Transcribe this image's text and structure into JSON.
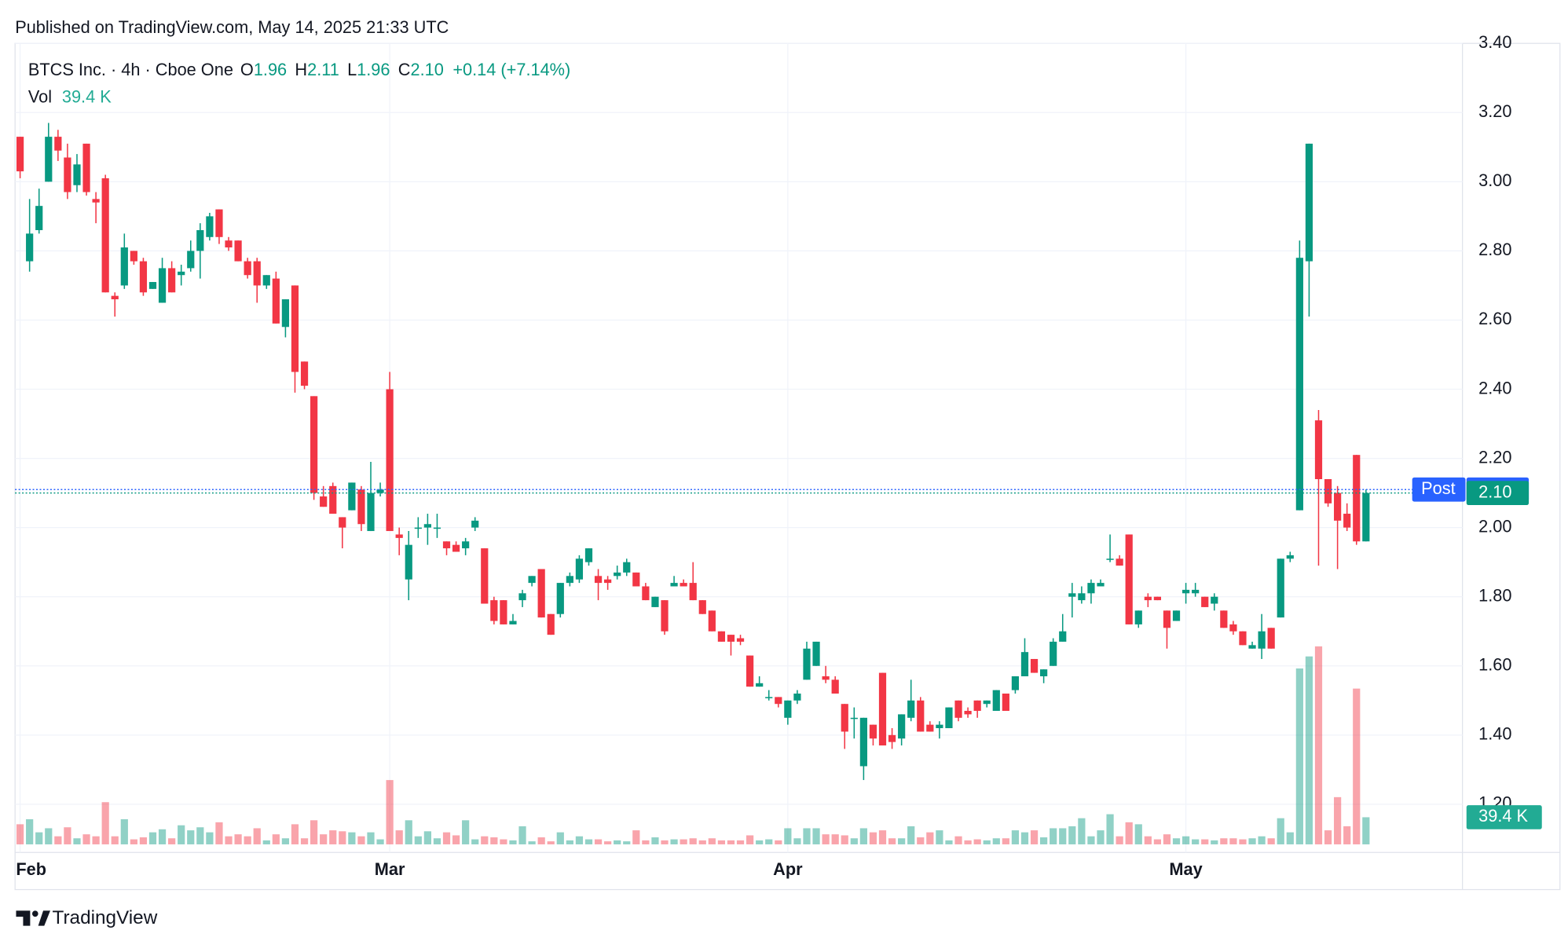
{
  "published": "Published on TradingView.com, May 14, 2025 21:33 UTC",
  "brand": "TradingView",
  "chart_data": {
    "type": "candlestick",
    "title": "BTCS Inc. · 4h · Cboe One",
    "up_color": "#089981",
    "down_color": "#f23645",
    "grid": true,
    "legend": {
      "ohlc_labels": [
        "O",
        "H",
        "L",
        "C"
      ],
      "close_label": "2.10",
      "change": "+0.14 (+7.14%)"
    },
    "post_market": {
      "label": "Post",
      "value": 2.11,
      "color": "#2962ff"
    },
    "ylim": [
      1.084,
      3.4
    ],
    "yticks": [
      {
        "value": 1.2,
        "label": "1.20"
      },
      {
        "value": 1.4,
        "label": "1.40"
      },
      {
        "value": 1.6,
        "label": "1.60"
      },
      {
        "value": 1.8,
        "label": "1.80"
      },
      {
        "value": 2.0,
        "label": "2.00"
      },
      {
        "value": 2.2,
        "label": "2.20"
      },
      {
        "value": 2.4,
        "label": "2.40"
      },
      {
        "value": 2.6,
        "label": "2.60"
      },
      {
        "value": 2.8,
        "label": "2.80"
      },
      {
        "value": 3.0,
        "label": "3.00"
      },
      {
        "value": 3.2,
        "label": "3.20"
      },
      {
        "value": 3.4,
        "label": "3.40"
      }
    ],
    "categories": [
      "Feb",
      null,
      null,
      null,
      null,
      null,
      null,
      null,
      null,
      null,
      null,
      null,
      null,
      null,
      null,
      null,
      null,
      null,
      null,
      null,
      null,
      null,
      null,
      null,
      null,
      null,
      null,
      null,
      null,
      null,
      null,
      null,
      null,
      null,
      null,
      null,
      null,
      null,
      null,
      "Mar",
      null,
      null,
      null,
      null,
      null,
      null,
      null,
      null,
      null,
      null,
      null,
      null,
      null,
      null,
      null,
      null,
      null,
      null,
      null,
      null,
      null,
      null,
      null,
      null,
      null,
      null,
      null,
      null,
      null,
      null,
      null,
      null,
      null,
      null,
      null,
      null,
      null,
      null,
      null,
      null,
      null,
      "Apr",
      null,
      null,
      null,
      null,
      null,
      null,
      null,
      null,
      null,
      null,
      null,
      null,
      null,
      null,
      null,
      null,
      null,
      null,
      null,
      null,
      null,
      null,
      null,
      null,
      null,
      null,
      null,
      null,
      null,
      null,
      null,
      null,
      null,
      null,
      null,
      null,
      null,
      null,
      null,
      null,
      null,
      "May",
      null,
      null,
      null,
      null,
      null,
      null,
      null,
      null,
      null,
      null,
      null,
      null,
      null,
      null,
      null,
      null,
      null,
      null,
      null
    ],
    "open": [
      3.13,
      2.77,
      2.86,
      3.0,
      3.13,
      3.07,
      2.99,
      3.11,
      2.95,
      3.01,
      2.67,
      2.7,
      2.8,
      2.77,
      2.69,
      2.65,
      2.75,
      2.73,
      2.75,
      2.8,
      2.84,
      2.92,
      2.83,
      2.83,
      2.77,
      2.77,
      2.7,
      2.72,
      2.58,
      2.7,
      2.48,
      2.38,
      2.09,
      2.12,
      2.03,
      2.05,
      2.11,
      1.99,
      2.1,
      2.4,
      1.98,
      1.85,
      2.0,
      2.0,
      2.0,
      1.96,
      1.95,
      1.94,
      2.0,
      1.94,
      1.79,
      1.79,
      1.72,
      1.79,
      1.84,
      1.88,
      1.75,
      1.75,
      1.84,
      1.85,
      1.9,
      1.86,
      1.85,
      1.86,
      1.87,
      1.87,
      1.83,
      1.77,
      1.79,
      1.83,
      1.84,
      1.84,
      1.79,
      1.76,
      1.7,
      1.69,
      1.68,
      1.63,
      1.54,
      1.51,
      1.51,
      1.45,
      1.5,
      1.56,
      1.6,
      1.57,
      1.56,
      1.49,
      1.45,
      1.31,
      1.43,
      1.58,
      1.4,
      1.39,
      1.45,
      1.5,
      1.43,
      1.42,
      1.42,
      1.5,
      1.47,
      1.5,
      1.49,
      1.47,
      1.52,
      1.53,
      1.57,
      1.62,
      1.57,
      1.6,
      1.67,
      1.8,
      1.79,
      1.81,
      1.83,
      1.91,
      1.91,
      1.98,
      1.72,
      1.8,
      1.8,
      1.76,
      1.73,
      1.81,
      1.81,
      1.8,
      1.78,
      1.76,
      1.72,
      1.7,
      1.65,
      1.65,
      1.71,
      1.74,
      1.91,
      2.05,
      2.77,
      2.31,
      2.14,
      2.1,
      2.04,
      2.21,
      1.96
    ],
    "high": [
      3.13,
      2.95,
      2.98,
      3.17,
      3.15,
      3.11,
      3.08,
      3.11,
      2.97,
      3.02,
      2.68,
      2.85,
      2.8,
      2.78,
      2.71,
      2.78,
      2.77,
      2.76,
      2.83,
      2.88,
      2.91,
      2.92,
      2.84,
      2.83,
      2.78,
      2.78,
      2.73,
      2.74,
      2.66,
      2.7,
      2.48,
      2.38,
      2.12,
      2.13,
      2.03,
      2.13,
      2.12,
      2.19,
      2.13,
      2.45,
      2.0,
      1.99,
      2.03,
      2.04,
      2.04,
      1.96,
      1.96,
      1.97,
      2.03,
      1.94,
      1.8,
      1.79,
      1.75,
      1.82,
      1.86,
      1.88,
      1.75,
      1.84,
      1.87,
      1.92,
      1.94,
      1.88,
      1.86,
      1.89,
      1.91,
      1.87,
      1.84,
      1.8,
      1.79,
      1.86,
      1.85,
      1.9,
      1.79,
      1.76,
      1.7,
      1.69,
      1.69,
      1.63,
      1.57,
      1.53,
      1.51,
      1.5,
      1.53,
      1.67,
      1.67,
      1.6,
      1.57,
      1.49,
      1.48,
      1.45,
      1.43,
      1.58,
      1.42,
      1.46,
      1.56,
      1.51,
      1.44,
      1.44,
      1.48,
      1.5,
      1.48,
      1.5,
      1.5,
      1.53,
      1.52,
      1.57,
      1.68,
      1.62,
      1.59,
      1.68,
      1.75,
      1.84,
      1.83,
      1.85,
      1.85,
      1.98,
      1.92,
      1.98,
      1.76,
      1.81,
      1.8,
      1.76,
      1.76,
      1.84,
      1.84,
      1.8,
      1.81,
      1.76,
      1.73,
      1.7,
      1.67,
      1.75,
      1.71,
      1.91,
      1.93,
      2.83,
      3.11,
      2.34,
      2.14,
      2.12,
      2.07,
      2.21,
      2.11
    ],
    "low": [
      3.01,
      2.74,
      2.85,
      3.0,
      3.06,
      2.95,
      2.97,
      2.96,
      2.88,
      2.68,
      2.61,
      2.69,
      2.76,
      2.67,
      2.69,
      2.65,
      2.68,
      2.7,
      2.74,
      2.72,
      2.83,
      2.82,
      2.8,
      2.77,
      2.72,
      2.65,
      2.69,
      2.59,
      2.55,
      2.39,
      2.4,
      2.08,
      2.06,
      2.04,
      1.94,
      2.05,
      1.99,
      1.99,
      2.09,
      1.99,
      1.92,
      1.79,
      1.97,
      1.95,
      1.97,
      1.92,
      1.93,
      1.92,
      1.99,
      1.78,
      1.72,
      1.72,
      1.72,
      1.77,
      1.83,
      1.74,
      1.69,
      1.74,
      1.83,
      1.84,
      1.89,
      1.79,
      1.82,
      1.85,
      1.86,
      1.83,
      1.79,
      1.77,
      1.69,
      1.83,
      1.83,
      1.79,
      1.75,
      1.7,
      1.67,
      1.63,
      1.66,
      1.54,
      1.54,
      1.5,
      1.48,
      1.43,
      1.49,
      1.56,
      1.6,
      1.55,
      1.52,
      1.36,
      1.39,
      1.27,
      1.37,
      1.37,
      1.36,
      1.37,
      1.44,
      1.41,
      1.41,
      1.39,
      1.42,
      1.44,
      1.45,
      1.45,
      1.48,
      1.47,
      1.47,
      1.52,
      1.57,
      1.58,
      1.55,
      1.6,
      1.67,
      1.74,
      1.78,
      1.78,
      1.83,
      1.9,
      1.89,
      1.72,
      1.71,
      1.77,
      1.79,
      1.65,
      1.73,
      1.78,
      1.8,
      1.77,
      1.76,
      1.71,
      1.69,
      1.66,
      1.65,
      1.62,
      1.65,
      1.74,
      1.9,
      2.05,
      2.61,
      1.89,
      2.06,
      1.88,
      1.99,
      1.95,
      1.96
    ],
    "close": [
      3.03,
      2.85,
      2.93,
      3.13,
      3.09,
      2.97,
      3.05,
      2.97,
      2.94,
      2.68,
      2.66,
      2.81,
      2.77,
      2.68,
      2.71,
      2.75,
      2.68,
      2.74,
      2.8,
      2.86,
      2.9,
      2.84,
      2.81,
      2.77,
      2.73,
      2.7,
      2.73,
      2.59,
      2.66,
      2.45,
      2.41,
      2.1,
      2.06,
      2.04,
      2.0,
      2.13,
      2.01,
      2.1,
      2.11,
      1.99,
      1.97,
      1.95,
      2.0,
      2.01,
      2.0,
      1.94,
      1.93,
      1.96,
      2.02,
      1.78,
      1.73,
      1.72,
      1.73,
      1.81,
      1.86,
      1.74,
      1.69,
      1.84,
      1.86,
      1.91,
      1.94,
      1.84,
      1.84,
      1.87,
      1.9,
      1.83,
      1.79,
      1.8,
      1.7,
      1.84,
      1.83,
      1.79,
      1.75,
      1.7,
      1.67,
      1.67,
      1.67,
      1.54,
      1.55,
      1.51,
      1.49,
      1.5,
      1.52,
      1.65,
      1.67,
      1.56,
      1.52,
      1.41,
      1.45,
      1.45,
      1.39,
      1.37,
      1.38,
      1.46,
      1.5,
      1.41,
      1.41,
      1.43,
      1.48,
      1.45,
      1.46,
      1.47,
      1.5,
      1.53,
      1.47,
      1.57,
      1.64,
      1.58,
      1.59,
      1.67,
      1.7,
      1.81,
      1.81,
      1.84,
      1.84,
      1.91,
      1.89,
      1.72,
      1.76,
      1.79,
      1.79,
      1.71,
      1.76,
      1.82,
      1.82,
      1.77,
      1.8,
      1.71,
      1.7,
      1.66,
      1.66,
      1.7,
      1.65,
      1.91,
      1.92,
      2.78,
      3.11,
      2.14,
      2.07,
      2.02,
      2.0,
      1.96,
      2.1
    ],
    "volume": {
      "name": "Vol",
      "last_label": "39.4 K",
      "values": [
        29200,
        36500,
        17500,
        23400,
        11700,
        24800,
        8800,
        14600,
        11700,
        61300,
        11700,
        36500,
        7300,
        10200,
        17500,
        21900,
        8800,
        27700,
        20400,
        24800,
        17500,
        32100,
        11700,
        14600,
        11700,
        23400,
        5800,
        14600,
        8800,
        29200,
        8800,
        35000,
        14600,
        20400,
        19000,
        17500,
        11700,
        17500,
        7300,
        93400,
        20400,
        35000,
        11700,
        19000,
        8800,
        17500,
        13100,
        35000,
        7300,
        11700,
        10200,
        7300,
        5800,
        26300,
        4400,
        10200,
        4400,
        17500,
        5800,
        11700,
        7300,
        7300,
        4400,
        5800,
        4400,
        20400,
        5800,
        10200,
        5800,
        7300,
        7300,
        8800,
        5800,
        8800,
        5800,
        5800,
        5800,
        13100,
        5800,
        7300,
        5800,
        23400,
        8800,
        23400,
        23400,
        14600,
        14600,
        13100,
        8800,
        23400,
        17500,
        20400,
        8800,
        8800,
        26300,
        10200,
        17500,
        20400,
        5800,
        11700,
        5800,
        7300,
        5800,
        8800,
        8800,
        20400,
        17500,
        20400,
        10200,
        23400,
        23400,
        26300,
        38000,
        11700,
        20400,
        43800,
        11700,
        32100,
        29200,
        11700,
        7300,
        14600,
        8800,
        11700,
        7300,
        7300,
        5800,
        8800,
        8800,
        7300,
        8800,
        11700,
        8800,
        38000,
        17500,
        255500,
        273000,
        287600,
        20400,
        68600,
        26300,
        226300,
        39400
      ]
    }
  }
}
